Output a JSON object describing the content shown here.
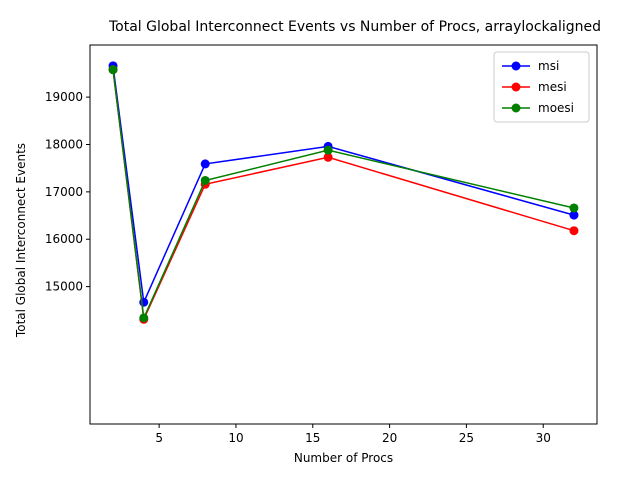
{
  "chart_data": {
    "type": "line",
    "title": "Total Global Interconnect Events vs Number of Procs, arraylockaligned",
    "xlabel": "Number of Procs",
    "ylabel": "Total Global Interconnect Events",
    "xlim": [
      0.5,
      33.5
    ],
    "ylim": [
      12100,
      20100
    ],
    "xticks": [
      5,
      10,
      15,
      20,
      25,
      30
    ],
    "yticks": [
      15000,
      16000,
      17000,
      18000,
      19000
    ],
    "grid": false,
    "legend_position": "upper right",
    "x": [
      2,
      4,
      8,
      16,
      32
    ],
    "series": [
      {
        "name": "msi",
        "color": "#0000ff",
        "values": [
          19660,
          14670,
          17590,
          17960,
          16510
        ]
      },
      {
        "name": "mesi",
        "color": "#ff0000",
        "values": [
          19580,
          14310,
          17160,
          17730,
          16180
        ]
      },
      {
        "name": "moesi",
        "color": "#008000",
        "values": [
          19580,
          14340,
          17240,
          17880,
          16660
        ]
      }
    ]
  }
}
